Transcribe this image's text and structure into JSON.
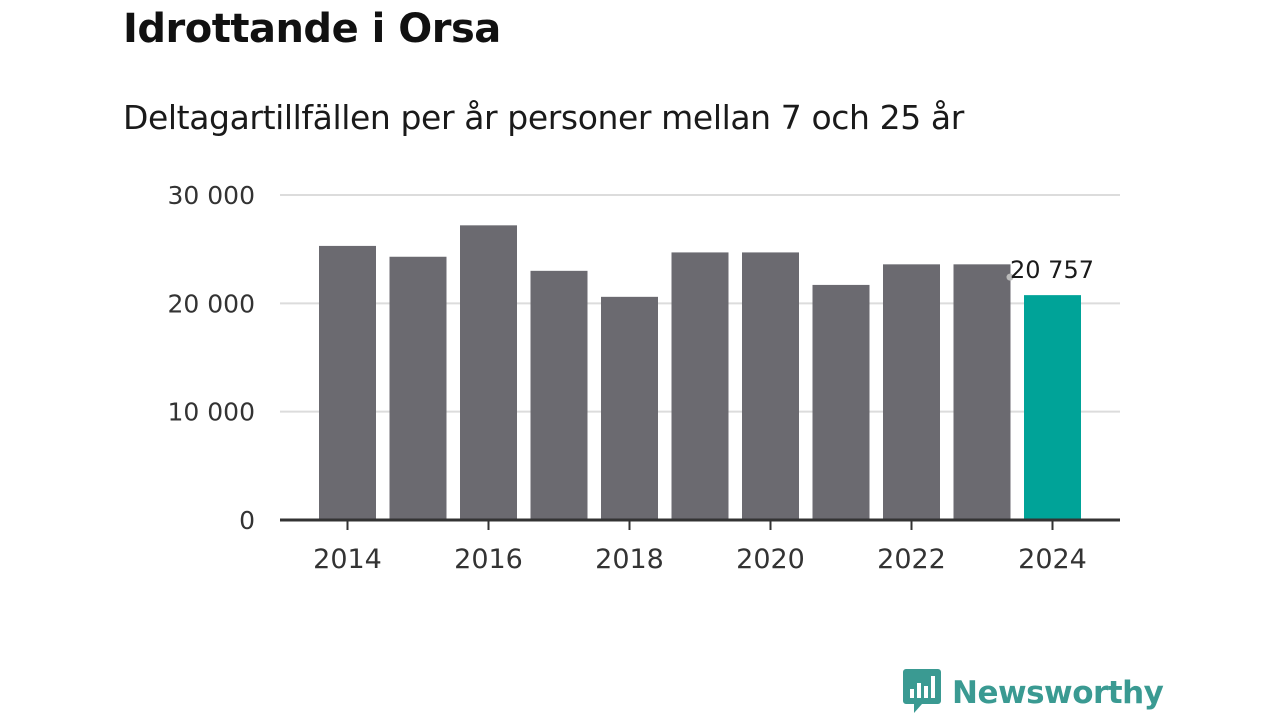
{
  "header": {
    "title": "Idrottande i Orsa",
    "subtitle": "Deltagartillfällen per år personer mellan 7 och 25 år"
  },
  "brand": {
    "name": "Newsworthy",
    "color": "#3a9a92",
    "icon": "bar-chart-speech-bubble-icon"
  },
  "colors": {
    "bar": "#6b6a70",
    "highlight": "#00a398",
    "grid": "#dcdcdc",
    "axis": "#333333"
  },
  "chart_data": {
    "type": "bar",
    "categories": [
      "2014",
      "2015",
      "2016",
      "2017",
      "2018",
      "2019",
      "2020",
      "2021",
      "2022",
      "2023",
      "2024"
    ],
    "values": [
      25300,
      24300,
      27200,
      23000,
      20600,
      24700,
      24700,
      21700,
      23600,
      23600,
      20757
    ],
    "highlight_index": 10,
    "data_labels": [
      {
        "index": 10,
        "text": "20 757"
      }
    ],
    "x_tick_labels": [
      "2014",
      "2016",
      "2018",
      "2020",
      "2022",
      "2024"
    ],
    "y_ticks": [
      0,
      10000,
      20000,
      30000
    ],
    "y_tick_labels": [
      "0",
      "10 000",
      "20 000",
      "30 000"
    ],
    "ylim": [
      0,
      30000
    ],
    "grid": true,
    "legend": "none",
    "xlabel": "",
    "ylabel": ""
  }
}
